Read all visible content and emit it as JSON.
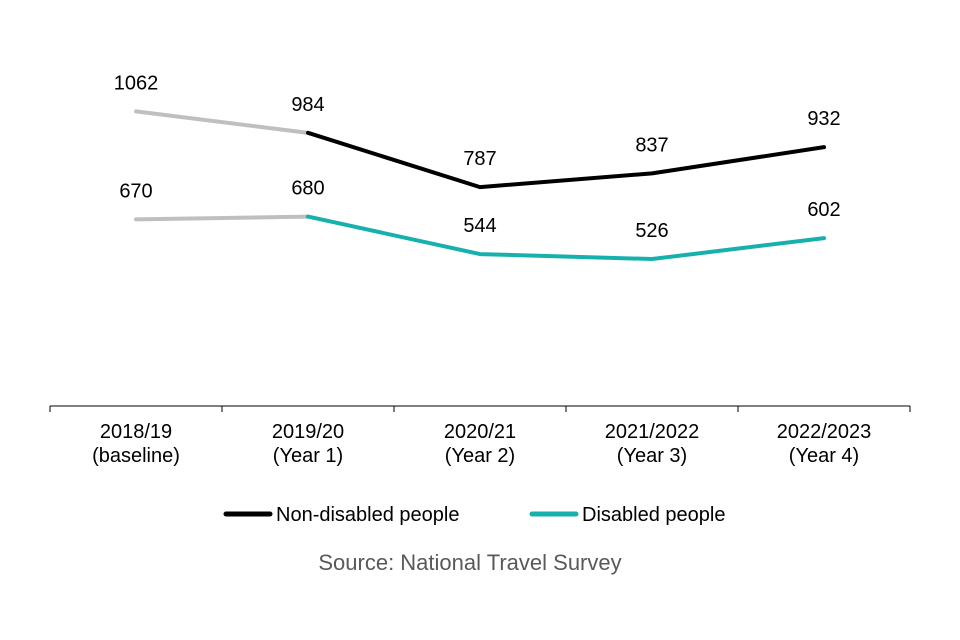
{
  "chart_data": {
    "type": "line",
    "title": "",
    "xlabel": "",
    "ylabel": "",
    "ylim": [
      0,
      1466
    ],
    "grid": false,
    "categories": [
      [
        "2018/19",
        "(baseline)"
      ],
      [
        "2019/20",
        "(Year 1)"
      ],
      [
        "2020/21",
        "(Year 2)"
      ],
      [
        "2021/2022",
        "(Year 3)"
      ],
      [
        "2022/2023",
        "(Year 4)"
      ]
    ],
    "series": [
      {
        "name": "Non-disabled people",
        "color": "#000000",
        "baseline_color": "#bfbfbf",
        "values": [
          1062,
          984,
          787,
          837,
          932
        ]
      },
      {
        "name": "Disabled people",
        "color": "#17b1ad",
        "baseline_color": "#bfbfbf",
        "values": [
          670,
          680,
          544,
          526,
          602
        ]
      }
    ],
    "legend": {
      "placement": "bottom",
      "items": [
        "Non-disabled people",
        "Disabled people"
      ]
    },
    "source": "Source: National Travel Survey"
  }
}
